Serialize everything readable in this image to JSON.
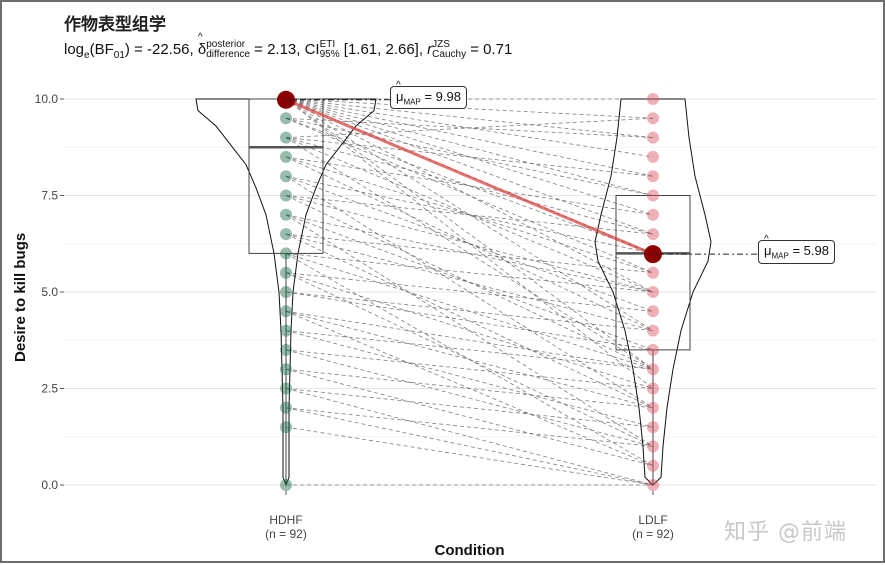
{
  "chart_data": {
    "type": "violin-box-paired",
    "title": "作物表型组学",
    "subtitle": {
      "prefix": "log",
      "prefix_sub": "e",
      "bf": "(BF",
      "bf_sub": "01",
      "bf_val": ") = -22.56, ",
      "delta": "δ",
      "delta_sup": "posterior",
      "delta_sub": "difference",
      "delta_val": " = 2.13, CI",
      "ci_sup": "ETI",
      "ci_sub": "95%",
      "ci_val": " [1.61, 2.66], ",
      "r": "r",
      "r_sup": "JZS",
      "r_sub": "Cauchy",
      "r_val": " = 0.71"
    },
    "xlabel": "Condition",
    "ylabel": "Desire to kill bugs",
    "ylim": [
      0,
      10
    ],
    "y_ticks": [
      "0.0",
      "2.5",
      "5.0",
      "7.5",
      "10.0"
    ],
    "y_tick_values": [
      0,
      2.5,
      5,
      7.5,
      10
    ],
    "categories": [
      {
        "name": "HDHF",
        "n_label": "(n = 92)",
        "color": "#1b6b4a",
        "median": 8.75,
        "q1": 6.0,
        "q3": 10.0,
        "mean_map": 9.98,
        "map_label": "μ",
        "map_sub": "MAP",
        "map_val": " = 9.98",
        "points": [
          10,
          9.5,
          9,
          8.5,
          8,
          7.5,
          7,
          6.5,
          6,
          5.5,
          5,
          4.5,
          4,
          3.5,
          3,
          2.5,
          2,
          1.5,
          0
        ]
      },
      {
        "name": "LDLF",
        "n_label": "(n = 92)",
        "color": "#d9535f",
        "median": 6.0,
        "q1": 3.5,
        "q3": 7.5,
        "mean_map": 5.98,
        "map_label": "μ",
        "map_sub": "MAP",
        "map_val": " = 5.98",
        "points": [
          10,
          9.5,
          9,
          8.5,
          8,
          7.5,
          7,
          6.5,
          6,
          5.5,
          5,
          4.5,
          4,
          3.5,
          3,
          2.5,
          2,
          1.5,
          1,
          0.5,
          0
        ]
      }
    ],
    "paired_lines": [
      [
        10,
        10
      ],
      [
        10,
        9.5
      ],
      [
        10,
        9
      ],
      [
        10,
        8.5
      ],
      [
        10,
        8
      ],
      [
        10,
        7.5
      ],
      [
        10,
        7
      ],
      [
        10,
        6
      ],
      [
        10,
        5
      ],
      [
        10,
        4
      ],
      [
        9.5,
        9
      ],
      [
        9.5,
        7.5
      ],
      [
        9.5,
        6
      ],
      [
        9,
        8
      ],
      [
        9,
        6.5
      ],
      [
        9,
        5
      ],
      [
        8.5,
        7
      ],
      [
        8.5,
        5.5
      ],
      [
        8,
        6
      ],
      [
        8,
        4.5
      ],
      [
        7.5,
        6.5
      ],
      [
        7.5,
        5
      ],
      [
        7,
        5
      ],
      [
        7,
        3.5
      ],
      [
        6.5,
        5.5
      ],
      [
        6.5,
        4
      ],
      [
        6,
        5
      ],
      [
        6,
        3
      ],
      [
        5.5,
        4.5
      ],
      [
        5.5,
        2.5
      ],
      [
        5,
        4
      ],
      [
        5,
        3.5
      ],
      [
        4.5,
        3
      ],
      [
        4.5,
        2
      ],
      [
        4,
        3
      ],
      [
        4,
        1.5
      ],
      [
        3.5,
        2.5
      ],
      [
        3.5,
        1
      ],
      [
        3,
        2
      ],
      [
        3,
        0.5
      ],
      [
        2.5,
        1.5
      ],
      [
        2.5,
        0
      ],
      [
        2,
        1
      ],
      [
        2,
        0
      ],
      [
        1.5,
        0
      ],
      [
        0,
        0
      ],
      [
        10,
        3
      ],
      [
        10,
        2.5
      ],
      [
        9,
        3
      ],
      [
        8,
        2
      ],
      [
        7,
        1
      ],
      [
        6,
        0.5
      ],
      [
        10,
        6.5
      ],
      [
        9.5,
        5.5
      ],
      [
        8.5,
        4
      ],
      [
        7.5,
        3
      ],
      [
        6.5,
        2
      ],
      [
        5.5,
        1
      ],
      [
        4.5,
        0.5
      ],
      [
        9,
        9.5
      ]
    ],
    "watermark": "知乎 @前端"
  }
}
